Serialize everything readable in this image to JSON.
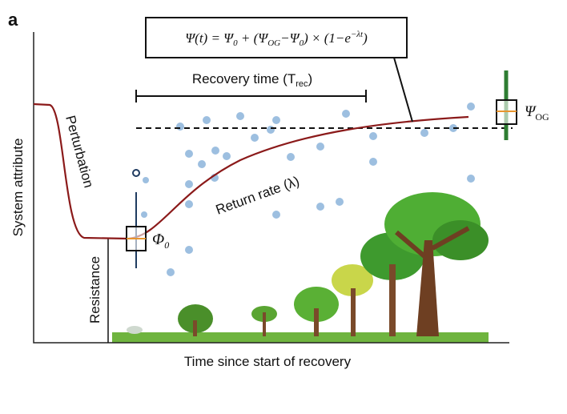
{
  "panel_label": "a",
  "formula": [
    "Ψ(t) = Ψ",
    "0",
    " + (Ψ",
    "OG",
    "−Ψ",
    "0",
    ") × (1−e",
    "−λt",
    ")"
  ],
  "recovery_time": [
    "Recovery time (T",
    "rec",
    ")"
  ],
  "perturbation": "Perturbation",
  "return_rate": "Return rate (λ)",
  "initial_label": [
    "Φ",
    "0"
  ],
  "og_label": [
    "Ψ",
    "OG"
  ],
  "y_axis_label": "System attribute",
  "resistance": "Resistance",
  "x_axis_label": "Time since start of recovery"
}
